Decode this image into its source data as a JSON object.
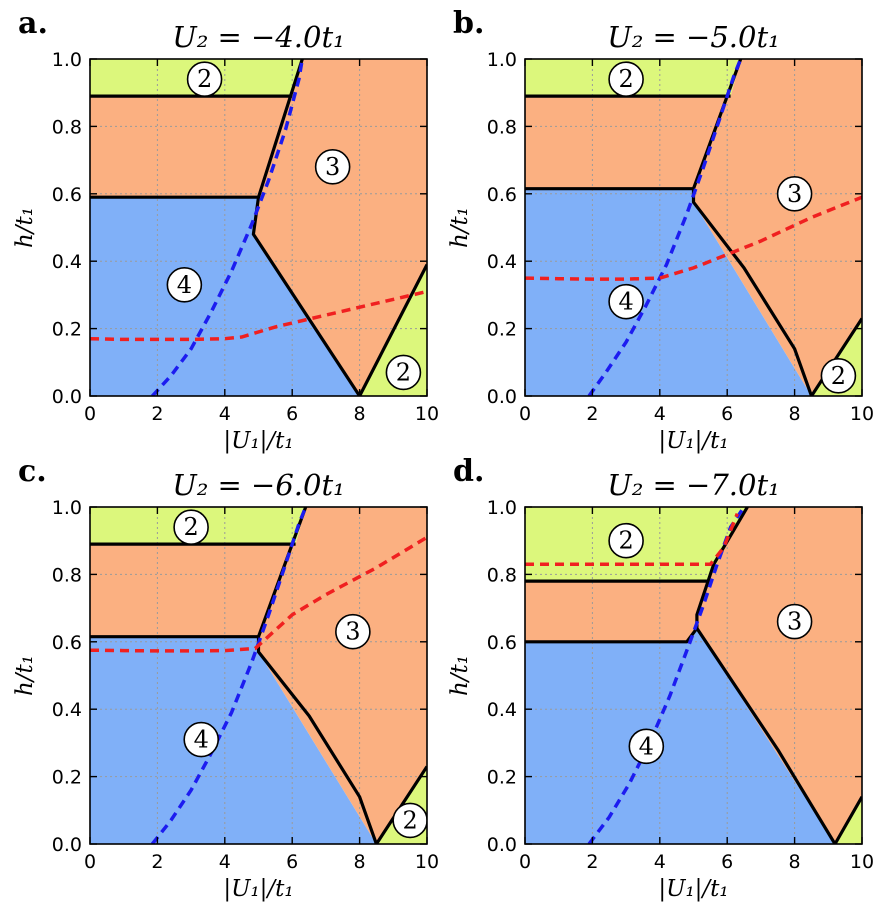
{
  "colors": {
    "region_2": "#dcf77c",
    "region_3": "#fbb081",
    "region_4": "#80b0f8",
    "boundary": "#000000",
    "blue_dashed": "#1c1cf0",
    "red_dashed": "#f02020",
    "grid": "#9a9a9a",
    "label_circle_fill": "#ffffff"
  },
  "chart_data": [
    {
      "type": "phase-diagram",
      "panel_label": "a.",
      "title": "U₂ = −4.0t₁",
      "xlabel": "|U₁|/t₁",
      "ylabel": "h/t₁",
      "xlim": [
        0,
        10
      ],
      "ylim": [
        0,
        1
      ],
      "xticks": [
        "0",
        "2",
        "4",
        "6",
        "8",
        "10"
      ],
      "yticks": [
        "0.0",
        "0.2",
        "0.4",
        "0.6",
        "0.8",
        "1.0"
      ],
      "grid": true,
      "regions": [
        {
          "label": "4",
          "fill": "region_4",
          "polygon": [
            [
              0,
              0
            ],
            [
              0,
              0.59
            ],
            [
              5.0,
              0.59
            ],
            [
              4.85,
              0.48
            ],
            [
              8.0,
              0.0
            ]
          ]
        },
        {
          "label": "3",
          "fill": "region_3",
          "polygon": [
            [
              0,
              0.59
            ],
            [
              0,
              0.89
            ],
            [
              6.0,
              0.89
            ],
            [
              6.3,
              1.0
            ],
            [
              10,
              1.0
            ],
            [
              10,
              0.39
            ],
            [
              8.0,
              0.0
            ],
            [
              4.85,
              0.48
            ],
            [
              5.0,
              0.59
            ]
          ]
        },
        {
          "label": "2",
          "fill": "region_2",
          "polygon": [
            [
              0,
              0.89
            ],
            [
              0,
              1.0
            ],
            [
              6.3,
              1.0
            ],
            [
              6.0,
              0.89
            ]
          ]
        },
        {
          "label": "2",
          "fill": "region_2",
          "polygon": [
            [
              8.0,
              0.0
            ],
            [
              10,
              0.39
            ],
            [
              10,
              0.0
            ]
          ]
        }
      ],
      "boundaries": [
        [
          [
            0,
            0.89
          ],
          [
            6.0,
            0.89
          ]
        ],
        [
          [
            6.3,
            1.0
          ],
          [
            5.0,
            0.59
          ],
          [
            4.85,
            0.48
          ],
          [
            8.0,
            0.0
          ],
          [
            10,
            0.39
          ]
        ],
        [
          [
            0,
            0.59
          ],
          [
            5.0,
            0.59
          ]
        ]
      ],
      "blue_curve": {
        "x": [
          1.85,
          2.4,
          3.0,
          3.6,
          4.2,
          4.8,
          5.3,
          5.8,
          6.2,
          6.3
        ],
        "y": [
          0.0,
          0.06,
          0.14,
          0.25,
          0.37,
          0.51,
          0.64,
          0.79,
          0.94,
          1.0
        ]
      },
      "red_curve": {
        "x": [
          0,
          1.0,
          2.0,
          3.0,
          4.0,
          4.5,
          5.5,
          7.0,
          8.5,
          10
        ],
        "y": [
          0.17,
          0.168,
          0.168,
          0.168,
          0.17,
          0.175,
          0.205,
          0.24,
          0.275,
          0.31
        ]
      },
      "region_labels": [
        {
          "text": "2",
          "x": 3.4,
          "y": 0.94
        },
        {
          "text": "3",
          "x": 7.2,
          "y": 0.68
        },
        {
          "text": "4",
          "x": 2.8,
          "y": 0.33
        },
        {
          "text": "2",
          "x": 9.3,
          "y": 0.07
        }
      ]
    },
    {
      "type": "phase-diagram",
      "panel_label": "b.",
      "title": "U₂ = −5.0t₁",
      "xlabel": "|U₁|/t₁",
      "ylabel": "h/t₁",
      "xlim": [
        0,
        10
      ],
      "ylim": [
        0,
        1
      ],
      "xticks": [
        "0",
        "2",
        "4",
        "6",
        "8",
        "10"
      ],
      "yticks": [
        "0.0",
        "0.2",
        "0.4",
        "0.6",
        "0.8",
        "1.0"
      ],
      "grid": true,
      "regions": [
        {
          "label": "4",
          "fill": "region_4",
          "polygon": [
            [
              0,
              0
            ],
            [
              0,
              0.615
            ],
            [
              5.0,
              0.615
            ],
            [
              5.0,
              0.575
            ],
            [
              8.5,
              0.0
            ]
          ]
        },
        {
          "label": "3",
          "fill": "region_3",
          "polygon": [
            [
              0,
              0.615
            ],
            [
              0,
              0.89
            ],
            [
              6.1,
              0.89
            ],
            [
              6.4,
              1.0
            ],
            [
              10,
              1.0
            ],
            [
              10,
              0.23
            ],
            [
              8.5,
              0.0
            ],
            [
              5.0,
              0.575
            ],
            [
              5.0,
              0.615
            ]
          ]
        },
        {
          "label": "2",
          "fill": "region_2",
          "polygon": [
            [
              0,
              0.89
            ],
            [
              0,
              1.0
            ],
            [
              6.4,
              1.0
            ],
            [
              6.1,
              0.89
            ]
          ]
        },
        {
          "label": "2",
          "fill": "region_2",
          "polygon": [
            [
              8.5,
              0.0
            ],
            [
              10,
              0.23
            ],
            [
              10,
              0.0
            ]
          ]
        }
      ],
      "boundaries": [
        [
          [
            0,
            0.89
          ],
          [
            6.1,
            0.89
          ]
        ],
        [
          [
            6.4,
            1.0
          ],
          [
            5.0,
            0.615
          ],
          [
            5.0,
            0.575
          ],
          [
            6.5,
            0.38
          ],
          [
            8.0,
            0.14
          ],
          [
            8.5,
            0.0
          ],
          [
            10,
            0.23
          ]
        ],
        [
          [
            0,
            0.615
          ],
          [
            5.0,
            0.615
          ]
        ]
      ],
      "blue_curve": {
        "x": [
          1.9,
          2.4,
          3.0,
          3.6,
          4.2,
          4.8,
          5.3,
          5.8,
          6.2,
          6.4
        ],
        "y": [
          0.0,
          0.07,
          0.16,
          0.27,
          0.39,
          0.54,
          0.68,
          0.83,
          0.95,
          1.0
        ]
      },
      "red_curve": {
        "x": [
          0,
          1.0,
          2.0,
          3.0,
          4.0,
          5.0,
          6.0,
          7.0,
          8.5,
          10
        ],
        "y": [
          0.35,
          0.348,
          0.347,
          0.347,
          0.35,
          0.38,
          0.42,
          0.46,
          0.53,
          0.59
        ]
      },
      "region_labels": [
        {
          "text": "2",
          "x": 3.0,
          "y": 0.94
        },
        {
          "text": "3",
          "x": 8.0,
          "y": 0.6
        },
        {
          "text": "4",
          "x": 3.0,
          "y": 0.28
        },
        {
          "text": "2",
          "x": 9.3,
          "y": 0.06
        }
      ]
    },
    {
      "type": "phase-diagram",
      "panel_label": "c.",
      "title": "U₂ = −6.0t₁",
      "xlabel": "|U₁|/t₁",
      "ylabel": "h/t₁",
      "xlim": [
        0,
        10
      ],
      "ylim": [
        0,
        1
      ],
      "xticks": [
        "0",
        "2",
        "4",
        "6",
        "8",
        "10"
      ],
      "yticks": [
        "0.0",
        "0.2",
        "0.4",
        "0.6",
        "0.8",
        "1.0"
      ],
      "grid": true,
      "regions": [
        {
          "label": "4",
          "fill": "region_4",
          "polygon": [
            [
              0,
              0
            ],
            [
              0,
              0.615
            ],
            [
              5.0,
              0.615
            ],
            [
              5.0,
              0.57
            ],
            [
              8.5,
              0.0
            ]
          ]
        },
        {
          "label": "3",
          "fill": "region_3",
          "polygon": [
            [
              0,
              0.615
            ],
            [
              0,
              0.89
            ],
            [
              6.1,
              0.89
            ],
            [
              6.4,
              1.0
            ],
            [
              10,
              1.0
            ],
            [
              10,
              0.23
            ],
            [
              8.5,
              0.0
            ],
            [
              5.0,
              0.57
            ],
            [
              5.0,
              0.615
            ]
          ]
        },
        {
          "label": "2",
          "fill": "region_2",
          "polygon": [
            [
              0,
              0.89
            ],
            [
              0,
              1.0
            ],
            [
              6.4,
              1.0
            ],
            [
              6.1,
              0.89
            ]
          ]
        },
        {
          "label": "2",
          "fill": "region_2",
          "polygon": [
            [
              8.5,
              0.0
            ],
            [
              10,
              0.23
            ],
            [
              10,
              0.0
            ]
          ]
        }
      ],
      "boundaries": [
        [
          [
            0,
            0.89
          ],
          [
            6.1,
            0.89
          ]
        ],
        [
          [
            6.4,
            1.0
          ],
          [
            5.0,
            0.615
          ],
          [
            5.0,
            0.57
          ],
          [
            6.5,
            0.38
          ],
          [
            8.0,
            0.14
          ],
          [
            8.5,
            0.0
          ],
          [
            10,
            0.23
          ]
        ],
        [
          [
            0,
            0.615
          ],
          [
            5.0,
            0.615
          ]
        ]
      ],
      "blue_curve": {
        "x": [
          1.85,
          2.4,
          3.0,
          3.6,
          4.2,
          4.8,
          5.3,
          5.8,
          6.2,
          6.4
        ],
        "y": [
          0.0,
          0.07,
          0.16,
          0.27,
          0.39,
          0.54,
          0.68,
          0.83,
          0.95,
          1.0
        ]
      },
      "red_curve": {
        "x": [
          0,
          1.0,
          2.0,
          3.0,
          4.0,
          4.9,
          6.0,
          7.0,
          8.5,
          10
        ],
        "y": [
          0.575,
          0.574,
          0.573,
          0.573,
          0.574,
          0.58,
          0.68,
          0.74,
          0.82,
          0.91
        ]
      },
      "region_labels": [
        {
          "text": "2",
          "x": 3.0,
          "y": 0.94
        },
        {
          "text": "3",
          "x": 7.8,
          "y": 0.63
        },
        {
          "text": "4",
          "x": 3.3,
          "y": 0.31
        },
        {
          "text": "2",
          "x": 9.5,
          "y": 0.07
        }
      ]
    },
    {
      "type": "phase-diagram",
      "panel_label": "d.",
      "title": "U₂ = −7.0t₁",
      "xlabel": "|U₁|/t₁",
      "ylabel": "h/t₁",
      "xlim": [
        0,
        10
      ],
      "ylim": [
        0,
        1
      ],
      "xticks": [
        "0",
        "2",
        "4",
        "6",
        "8",
        "10"
      ],
      "yticks": [
        "0.0",
        "0.2",
        "0.4",
        "0.6",
        "0.8",
        "1.0"
      ],
      "grid": true,
      "regions": [
        {
          "label": "4",
          "fill": "region_4",
          "polygon": [
            [
              0,
              0
            ],
            [
              0,
              0.6
            ],
            [
              4.8,
              0.6
            ],
            [
              5.1,
              0.64
            ],
            [
              9.2,
              0.0
            ]
          ]
        },
        {
          "label": "3",
          "fill": "region_3",
          "polygon": [
            [
              0,
              0.6
            ],
            [
              0,
              0.78
            ],
            [
              5.4,
              0.78
            ],
            [
              6.6,
              1.0
            ],
            [
              10,
              1.0
            ],
            [
              10,
              0.14
            ],
            [
              9.2,
              0.0
            ],
            [
              5.1,
              0.64
            ],
            [
              4.8,
              0.6
            ]
          ]
        },
        {
          "label": "2",
          "fill": "region_2",
          "polygon": [
            [
              0,
              0.78
            ],
            [
              0,
              1.0
            ],
            [
              6.6,
              1.0
            ],
            [
              5.4,
              0.78
            ]
          ]
        },
        {
          "label": "2",
          "fill": "region_2",
          "polygon": [
            [
              9.2,
              0.0
            ],
            [
              10,
              0.14
            ],
            [
              10,
              0.0
            ]
          ]
        }
      ],
      "boundaries": [
        [
          [
            0,
            0.78
          ],
          [
            5.4,
            0.78
          ]
        ],
        [
          [
            6.6,
            1.0
          ],
          [
            5.6,
            0.83
          ],
          [
            5.1,
            0.68
          ],
          [
            5.1,
            0.64
          ],
          [
            7.5,
            0.28
          ],
          [
            9.2,
            0.0
          ],
          [
            10,
            0.14
          ]
        ],
        [
          [
            0,
            0.6
          ],
          [
            4.8,
            0.6
          ],
          [
            5.1,
            0.64
          ]
        ]
      ],
      "blue_curve": {
        "x": [
          1.9,
          2.5,
          3.1,
          3.7,
          4.3,
          4.9,
          5.3,
          5.7,
          6.1,
          6.5
        ],
        "y": [
          0.0,
          0.08,
          0.18,
          0.3,
          0.44,
          0.6,
          0.71,
          0.83,
          0.94,
          1.0
        ]
      },
      "red_curve": {
        "x": [
          0,
          1.5,
          3.0,
          4.5,
          5.5,
          5.9,
          6.3
        ],
        "y": [
          0.83,
          0.83,
          0.83,
          0.83,
          0.83,
          0.88,
          0.98
        ]
      },
      "region_labels": [
        {
          "text": "2",
          "x": 3.0,
          "y": 0.9
        },
        {
          "text": "3",
          "x": 8.0,
          "y": 0.66
        },
        {
          "text": "4",
          "x": 3.6,
          "y": 0.29
        }
      ]
    }
  ]
}
